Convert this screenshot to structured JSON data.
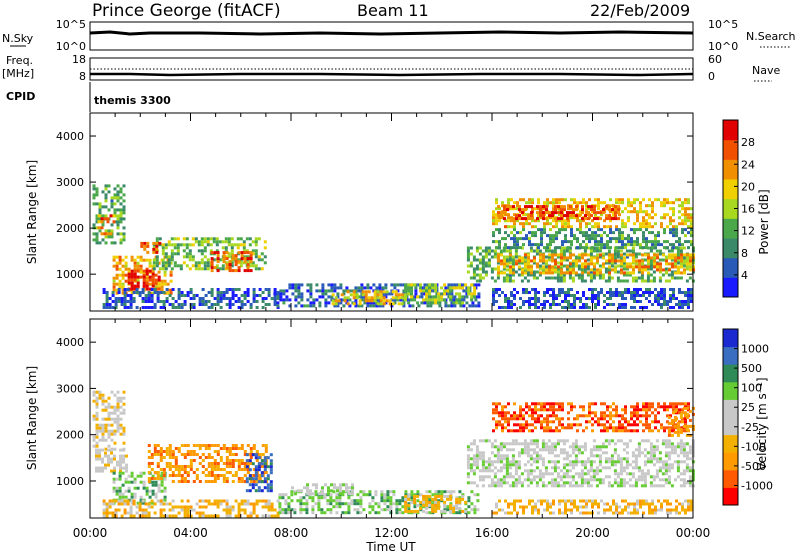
{
  "header": {
    "station": "Prince George (fitACF)",
    "beam": "Beam 11",
    "date": "22/Feb/2009"
  },
  "nsky_panel": {
    "left_label": "N.Sky",
    "left_ticks": [
      "10^5",
      "10^0"
    ],
    "right_label": "N.Search",
    "right_ticks": [
      "10^5",
      "10^0"
    ]
  },
  "freq_panel": {
    "left_label_1": "Freq.",
    "left_label_2": "[MHz]",
    "left_ticks": [
      "18",
      "8"
    ],
    "right_label": "Nave",
    "right_ticks": [
      "60",
      "0"
    ]
  },
  "cpid_panel": {
    "label": "CPID",
    "value": "themis 3300"
  },
  "x_axis": {
    "label": "Time UT",
    "ticks": [
      "00:00",
      "04:00",
      "08:00",
      "12:00",
      "16:00",
      "20:00",
      "00:00"
    ]
  },
  "colors": {
    "power_scale": [
      "#1a1aff",
      "#2a5ab8",
      "#3a8a6a",
      "#4aa84a",
      "#a8d820",
      "#f0d000",
      "#f09000",
      "#f05000",
      "#e00000"
    ],
    "velocity_scale": [
      "#ff0000",
      "#ff5a00",
      "#ff9a00",
      "#f4b000",
      "#c8c8c8",
      "#c8c8c8",
      "#66cc33",
      "#2e8b57",
      "#3a6ec0",
      "#1a2ad0"
    ]
  },
  "chart_data": [
    {
      "type": "heatmap",
      "name": "power",
      "ylabel": "Slant Range [km]",
      "xlabel": "Time UT",
      "xlim": [
        0,
        24
      ],
      "ylim": [
        200,
        4500
      ],
      "yticks": [
        "1000",
        "2000",
        "3000",
        "4000"
      ],
      "colorbar": {
        "label": "Power [dB]",
        "ticks": [
          "4",
          "8",
          "12",
          "16",
          "20",
          "24",
          "28"
        ],
        "range": [
          0,
          32
        ]
      },
      "regions": [
        {
          "t0": 0.1,
          "t1": 1.3,
          "r0": 1700,
          "r1": 2950,
          "value": 12
        },
        {
          "t0": 0.3,
          "t1": 1.0,
          "r0": 1900,
          "r1": 2300,
          "value": 24
        },
        {
          "t0": 0.9,
          "t1": 3.2,
          "r0": 600,
          "r1": 1400,
          "value": 22
        },
        {
          "t0": 1.5,
          "t1": 2.8,
          "r0": 700,
          "r1": 1100,
          "value": 30
        },
        {
          "t0": 2.5,
          "t1": 7.0,
          "r0": 1100,
          "r1": 1800,
          "value": 14
        },
        {
          "t0": 4.8,
          "t1": 6.4,
          "r0": 1100,
          "r1": 1500,
          "value": 26
        },
        {
          "t0": 2.0,
          "t1": 2.8,
          "r0": 1450,
          "r1": 1700,
          "value": 28
        },
        {
          "t0": 0.5,
          "t1": 7.5,
          "r0": 250,
          "r1": 700,
          "value": 5
        },
        {
          "t0": 7.3,
          "t1": 15.5,
          "r0": 300,
          "r1": 800,
          "value": 6
        },
        {
          "t0": 9.5,
          "t1": 12.5,
          "r0": 350,
          "r1": 650,
          "value": 20
        },
        {
          "t0": 12.5,
          "t1": 15.3,
          "r0": 400,
          "r1": 800,
          "value": 16
        },
        {
          "t0": 15.0,
          "t1": 24.0,
          "r0": 850,
          "r1": 1600,
          "value": 12
        },
        {
          "t0": 16.2,
          "t1": 24.0,
          "r0": 1050,
          "r1": 1450,
          "value": 22
        },
        {
          "t0": 16.0,
          "t1": 24.0,
          "r0": 2050,
          "r1": 2650,
          "value": 20
        },
        {
          "t0": 16.2,
          "t1": 21.0,
          "r0": 2200,
          "r1": 2500,
          "value": 27
        },
        {
          "t0": 16.0,
          "t1": 24.0,
          "r0": 1600,
          "r1": 2000,
          "value": 10
        },
        {
          "t0": 16.0,
          "t1": 24.0,
          "r0": 300,
          "r1": 700,
          "value": 5
        }
      ]
    },
    {
      "type": "heatmap",
      "name": "velocity",
      "ylabel": "Slant Range [km]",
      "xlabel": "Time UT",
      "xlim": [
        0,
        24
      ],
      "ylim": [
        200,
        4500
      ],
      "yticks": [
        "1000",
        "2000",
        "3000",
        "4000"
      ],
      "colorbar": {
        "label": "Velocity [m s⁻¹]",
        "ticks": [
          "1000",
          "500",
          "100",
          "25",
          "-25",
          "-100",
          "-500",
          "-1000"
        ]
      },
      "regions": [
        {
          "t0": 0.1,
          "t1": 1.3,
          "r0": 1700,
          "r1": 2950,
          "value": 4
        },
        {
          "t0": 0.2,
          "t1": 1.5,
          "r0": 1200,
          "r1": 1700,
          "value": 4
        },
        {
          "t0": 0.9,
          "t1": 3.0,
          "r0": 500,
          "r1": 1200,
          "value": 6
        },
        {
          "t0": 2.3,
          "t1": 7.0,
          "r0": 1000,
          "r1": 1800,
          "value": 2
        },
        {
          "t0": 6.2,
          "t1": 7.2,
          "r0": 800,
          "r1": 1600,
          "value": 8
        },
        {
          "t0": 0.5,
          "t1": 7.5,
          "r0": 250,
          "r1": 600,
          "value": 3
        },
        {
          "t0": 7.5,
          "t1": 15.5,
          "r0": 300,
          "r1": 800,
          "value": 6
        },
        {
          "t0": 8.0,
          "t1": 10.5,
          "r0": 700,
          "r1": 950,
          "value": 5
        },
        {
          "t0": 12.5,
          "t1": 15.0,
          "r0": 350,
          "r1": 700,
          "value": 3
        },
        {
          "t0": 15.0,
          "t1": 24.0,
          "r0": 900,
          "r1": 1900,
          "value": 5
        },
        {
          "t0": 16.0,
          "t1": 23.8,
          "r0": 2100,
          "r1": 2700,
          "value": 1
        },
        {
          "t0": 23.0,
          "t1": 24.0,
          "r0": 2000,
          "r1": 2600,
          "value": 2
        },
        {
          "t0": 16.0,
          "t1": 24.0,
          "r0": 300,
          "r1": 600,
          "value": 3
        }
      ]
    }
  ]
}
